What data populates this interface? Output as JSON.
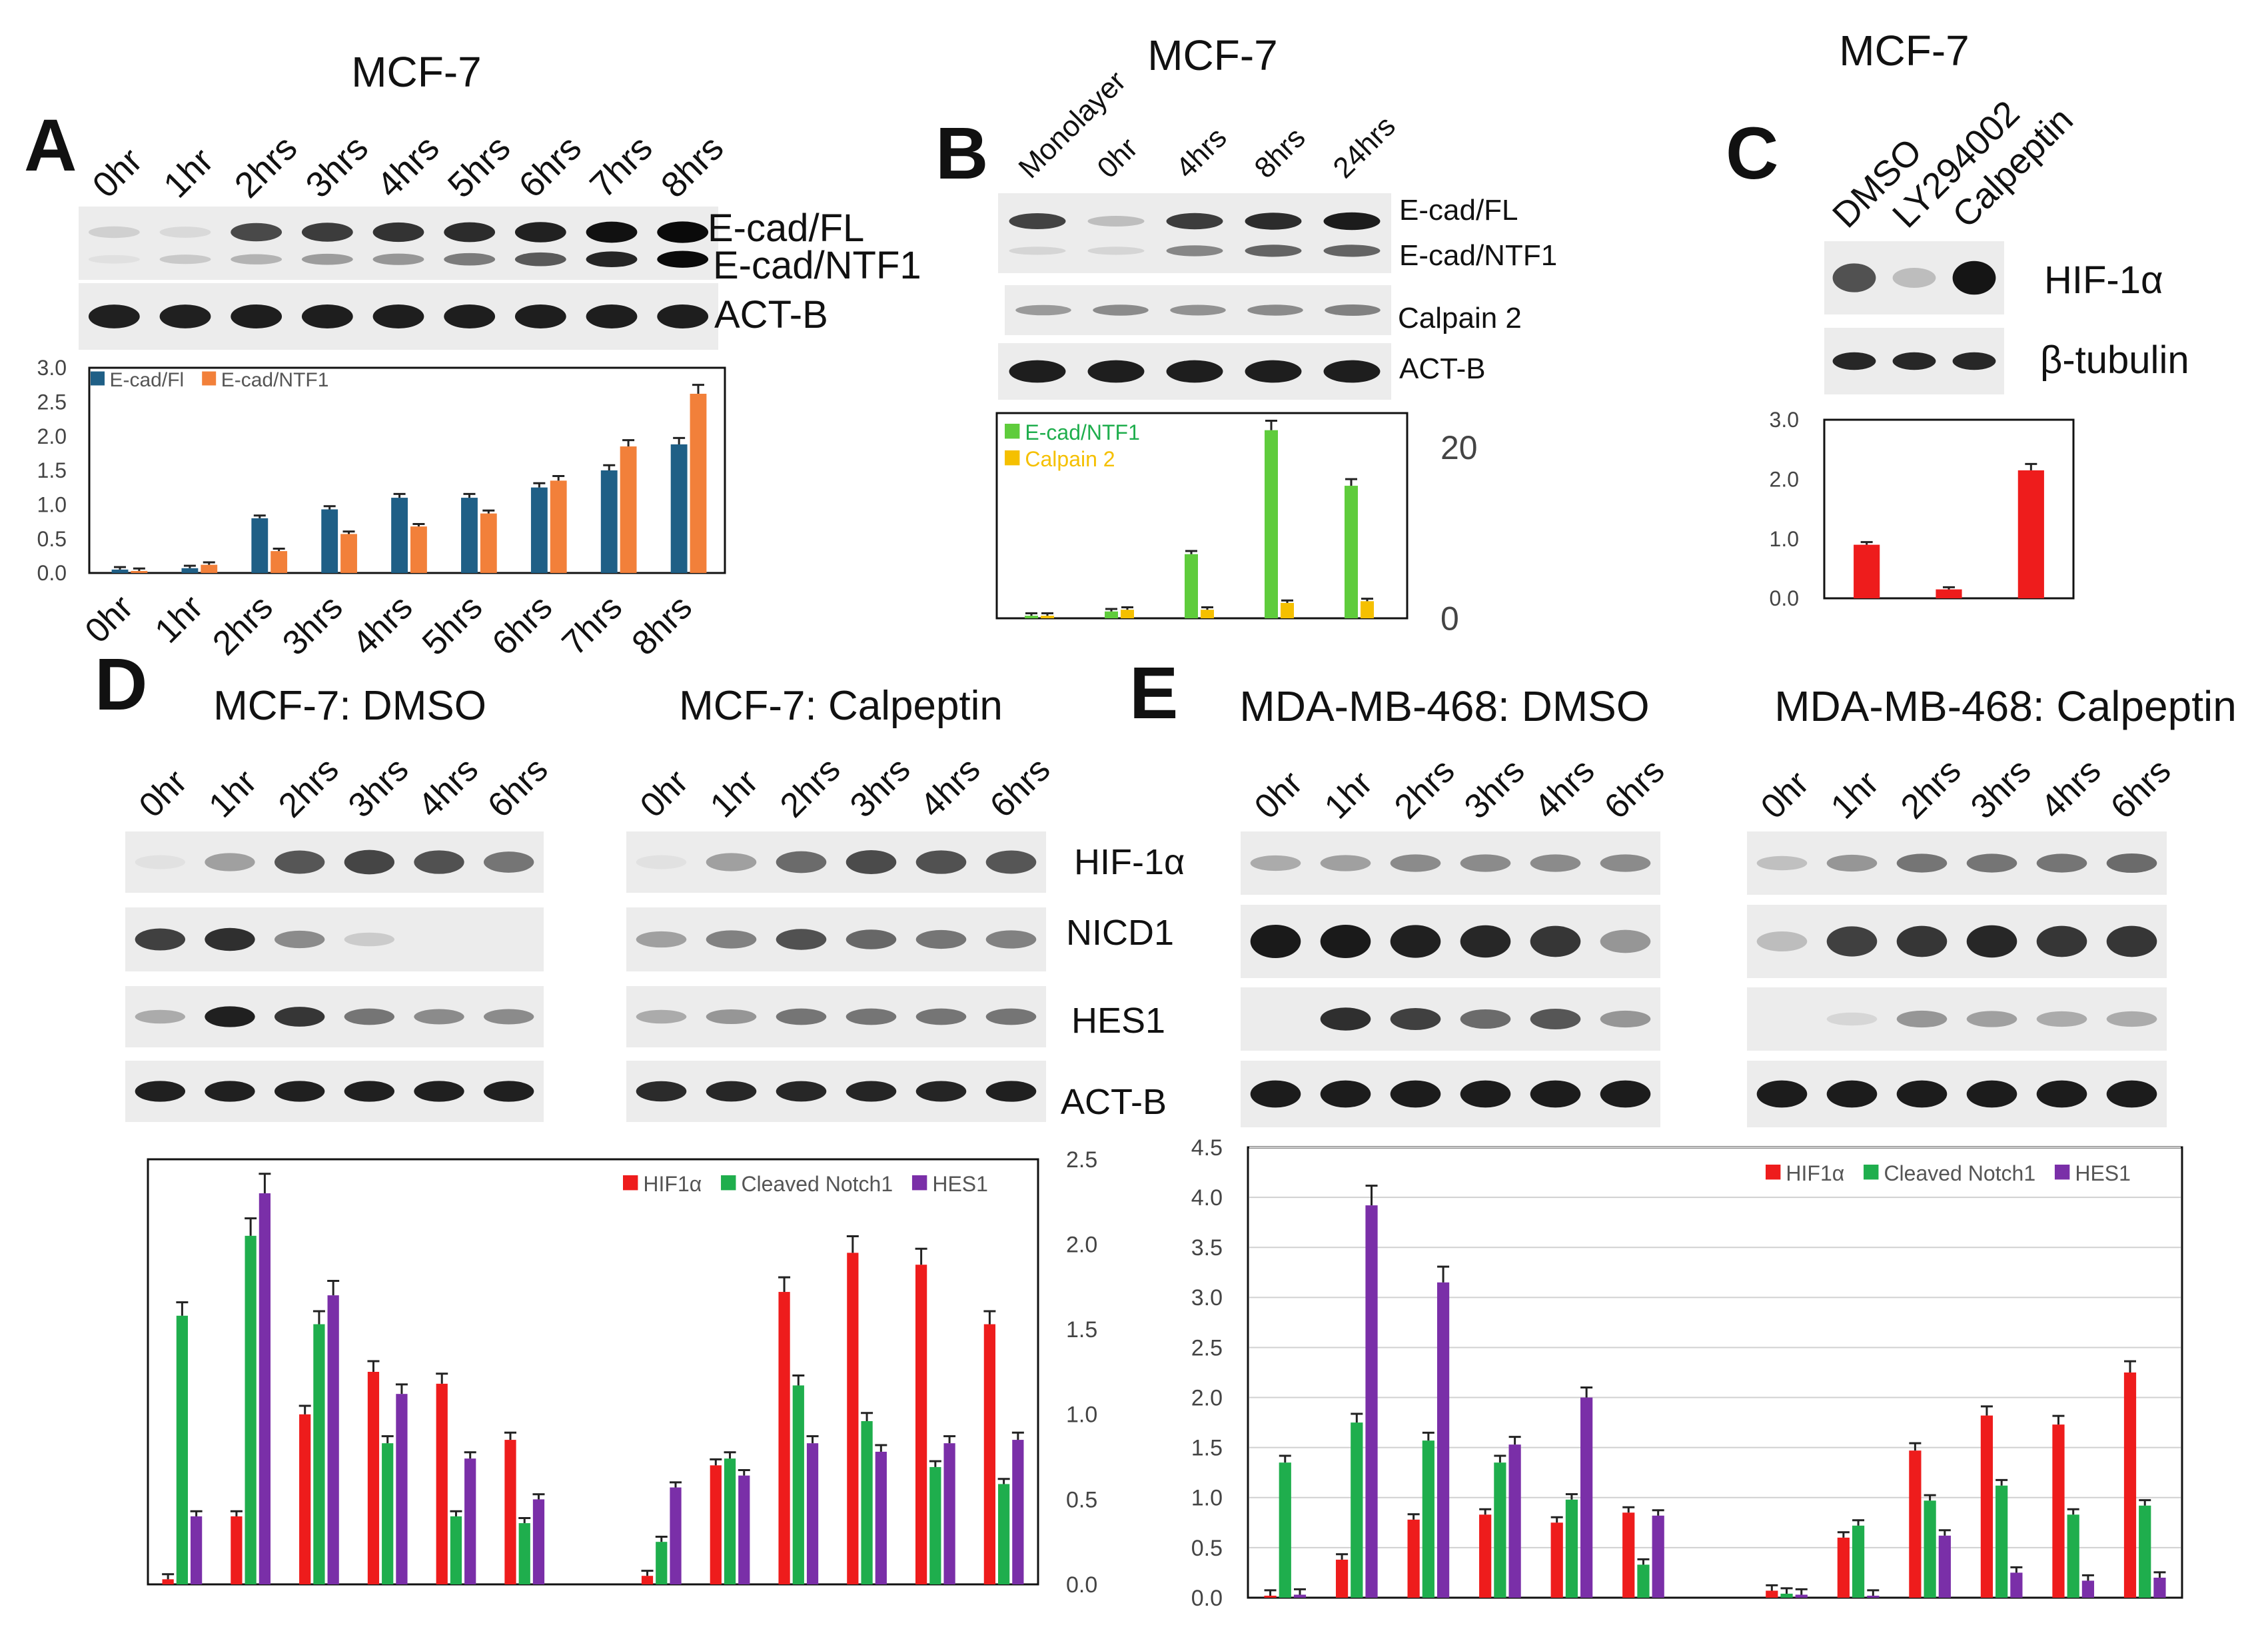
{
  "panel_a": {
    "letter": "A",
    "title": "MCF-7",
    "lanes": [
      "0hr",
      "1hr",
      "2hrs",
      "3hrs",
      "4hrs",
      "5hrs",
      "6hrs",
      "7hrs",
      "8hrs"
    ],
    "blot_labels": [
      "E-cad/FL",
      "E-cad/NTF1",
      "ACT-B"
    ]
  },
  "panel_b": {
    "letter": "B",
    "title": "MCF-7",
    "lanes": [
      "Monolayer",
      "0hr",
      "4hrs",
      "8hrs",
      "24hrs"
    ],
    "blot_labels": [
      "E-cad/FL",
      "E-cad/NTF1",
      "Calpain 2",
      "ACT-B"
    ]
  },
  "panel_c": {
    "letter": "C",
    "title": "MCF-7",
    "lanes": [
      "DMSO",
      "LY294002",
      "Calpeptin"
    ],
    "blot_labels": [
      "HIF-1α",
      "β-tubulin"
    ]
  },
  "panel_d": {
    "letter": "D",
    "title_dmso": "MCF-7: DMSO",
    "title_calpeptin": "MCF-7: Calpeptin",
    "lanes": [
      "0hr",
      "1hr",
      "2hrs",
      "3hrs",
      "4hrs",
      "6hrs"
    ],
    "blot_labels": [
      "HIF-1α",
      "NICD1",
      "HES1",
      "ACT-B"
    ]
  },
  "panel_e": {
    "letter": "E",
    "title_dmso": "MDA-MB-468: DMSO",
    "title_calpeptin": "MDA-MB-468: Calpeptin",
    "lanes": [
      "0hr",
      "1hr",
      "2hrs",
      "3hrs",
      "4hrs",
      "6hrs"
    ]
  },
  "colors": {
    "navy": "#1f5f86",
    "orange": "#f2803a",
    "green": "#1fae4d",
    "lime": "#5fcc3c",
    "yellow": "#f5c000",
    "red": "#ee1c1c",
    "purple": "#7a2fa8"
  },
  "chart_data": [
    {
      "id": "A",
      "type": "bar",
      "categories": [
        "0hr",
        "1hr",
        "2hrs",
        "3hrs",
        "4hrs",
        "5hrs",
        "6hrs",
        "7hrs",
        "8hrs"
      ],
      "series": [
        {
          "name": "E-cad/Fl",
          "values": [
            0.05,
            0.07,
            0.8,
            0.93,
            1.1,
            1.1,
            1.25,
            1.5,
            1.88
          ]
        },
        {
          "name": "E-cad/NTF1",
          "values": [
            0.03,
            0.12,
            0.32,
            0.57,
            0.68,
            0.87,
            1.35,
            1.85,
            2.62
          ]
        }
      ],
      "yticks": [
        "0.0",
        "0.5",
        "1.0",
        "1.5",
        "2.0",
        "2.5",
        "3.0"
      ],
      "ylim": [
        0,
        3.0
      ]
    },
    {
      "id": "B",
      "type": "bar",
      "categories": [
        "Monolayer",
        "0hr",
        "4hrs",
        "8hrs",
        "24hrs"
      ],
      "series": [
        {
          "name": "E-cad/NTF1",
          "values": [
            0.3,
            0.8,
            7.5,
            22,
            15.5
          ]
        },
        {
          "name": "Calpain 2",
          "values": [
            0.3,
            1.0,
            1.0,
            1.8,
            2.0
          ]
        }
      ],
      "yticks": [
        "0",
        "20"
      ],
      "ylim": [
        0,
        24
      ]
    },
    {
      "id": "C",
      "type": "bar",
      "categories": [
        "DMSO",
        "LY294002",
        "Calpeptin"
      ],
      "series": [
        {
          "name": "HIF-1α",
          "values": [
            0.9,
            0.15,
            2.15
          ]
        }
      ],
      "yticks": [
        "0.0",
        "1.0",
        "2.0",
        "3.0"
      ],
      "ylim": [
        0,
        3.0
      ]
    },
    {
      "id": "D",
      "type": "bar",
      "categories": [
        "0hr",
        "1hr",
        "2hrs",
        "3hrs",
        "4hrs",
        "6hrs",
        "0hr",
        "1hr",
        "2hrs",
        "3hrs",
        "4hrs",
        "6hrs"
      ],
      "series": [
        {
          "name": "HIF1α",
          "values": [
            0.03,
            0.4,
            1.0,
            1.25,
            1.18,
            0.85,
            0.05,
            0.7,
            1.72,
            1.95,
            1.88,
            1.53
          ]
        },
        {
          "name": "Cleaved Notch1",
          "values": [
            1.58,
            2.05,
            1.53,
            0.83,
            0.4,
            0.36,
            0.25,
            0.74,
            1.17,
            0.96,
            0.69,
            0.59
          ]
        },
        {
          "name": "HES1",
          "values": [
            0.4,
            2.3,
            1.7,
            1.12,
            0.74,
            0.5,
            0.57,
            0.64,
            0.83,
            0.78,
            0.83,
            0.85
          ]
        }
      ],
      "yticks": [
        "0.0",
        "0.5",
        "1.0",
        "1.5",
        "2.0",
        "2.5"
      ],
      "ylim": [
        0,
        2.5
      ]
    },
    {
      "id": "E",
      "type": "bar",
      "categories": [
        "0hr",
        "1hr",
        "2hrs",
        "3hrs",
        "4hrs",
        "6hrs",
        "0hr",
        "1hr",
        "2hrs",
        "3hrs",
        "4hrs",
        "6hrs"
      ],
      "series": [
        {
          "name": "HIF1α",
          "values": [
            0.02,
            0.38,
            0.78,
            0.83,
            0.75,
            0.85,
            0.07,
            0.6,
            1.47,
            1.82,
            1.73,
            2.25
          ]
        },
        {
          "name": "Cleaved Notch1",
          "values": [
            1.35,
            1.75,
            1.57,
            1.35,
            0.98,
            0.33,
            0.04,
            0.72,
            0.97,
            1.12,
            0.83,
            0.92
          ]
        },
        {
          "name": "HES1",
          "values": [
            0.03,
            3.92,
            3.15,
            1.53,
            2.0,
            0.82,
            0.03,
            0.02,
            0.62,
            0.25,
            0.17,
            0.2
          ]
        }
      ],
      "yticks": [
        "0.0",
        "0.5",
        "1.0",
        "1.5",
        "2.0",
        "2.5",
        "3.0",
        "3.5",
        "4.0",
        "4.5"
      ],
      "ylim": [
        0,
        4.5
      ]
    }
  ]
}
